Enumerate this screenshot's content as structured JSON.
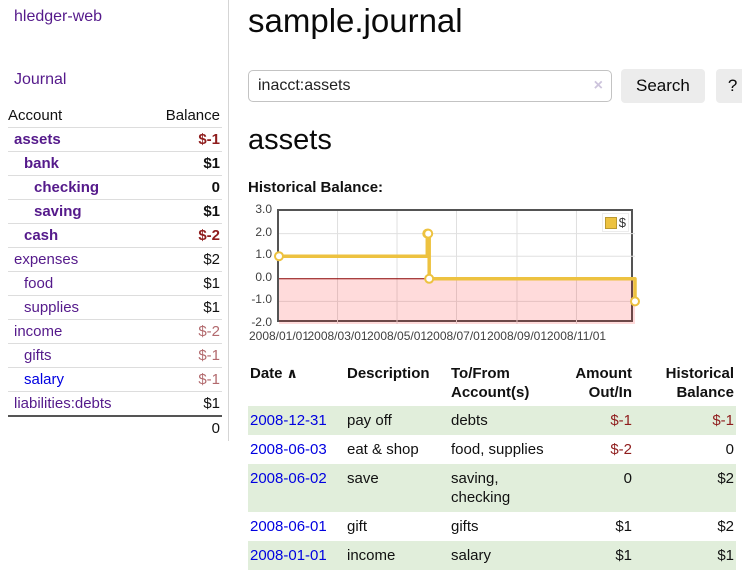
{
  "sidebar": {
    "brand": "hledger-web",
    "nav": {
      "journal": "Journal"
    },
    "accounts": {
      "headers": {
        "account": "Account",
        "balance": "Balance"
      },
      "rows": [
        {
          "name": "assets",
          "balance": "$-1"
        },
        {
          "name": "bank",
          "balance": "$1"
        },
        {
          "name": "checking",
          "balance": "0"
        },
        {
          "name": "saving",
          "balance": "$1"
        },
        {
          "name": "cash",
          "balance": "$-2"
        },
        {
          "name": "expenses",
          "balance": "$2"
        },
        {
          "name": "food",
          "balance": "$1"
        },
        {
          "name": "supplies",
          "balance": "$1"
        },
        {
          "name": "income",
          "balance": "$-2"
        },
        {
          "name": "gifts",
          "balance": "$-1"
        },
        {
          "name": "salary",
          "balance": "$-1"
        },
        {
          "name": "liabilities:debts",
          "balance": "$1"
        }
      ],
      "total": "0"
    }
  },
  "main": {
    "title": "sample.journal",
    "search": {
      "value": "inacct:assets",
      "clear_icon": "×",
      "search_button": "Search",
      "help_button": "?"
    },
    "account_heading": "assets",
    "chart_label": "Historical Balance:",
    "register": {
      "headers": {
        "date": "Date",
        "sort_icon": "∧",
        "description": "Description",
        "accounts": "To/From Account(s)",
        "amount": "Amount Out/In",
        "balance": "Historical Balance"
      },
      "rows": [
        {
          "date": "2008-12-31",
          "description": "pay off",
          "accounts": "debts",
          "amount": "$-1",
          "balance": "$-1"
        },
        {
          "date": "2008-06-03",
          "description": "eat & shop",
          "accounts": "food, supplies",
          "amount": "$-2",
          "balance": "0"
        },
        {
          "date": "2008-06-02",
          "description": "save",
          "accounts": "saving, checking",
          "amount": "0",
          "balance": "$2"
        },
        {
          "date": "2008-06-01",
          "description": "gift",
          "accounts": "gifts",
          "amount": "$1",
          "balance": "$2"
        },
        {
          "date": "2008-01-01",
          "description": "income",
          "accounts": "salary",
          "amount": "$1",
          "balance": "$1"
        }
      ]
    }
  },
  "chart_data": {
    "type": "line",
    "title": "Historical Balance:",
    "x_range": [
      "2008-01-01",
      "2008-12-31"
    ],
    "ylim": [
      -2,
      3
    ],
    "x_ticks": [
      "2008/01/01",
      "2008/03/01",
      "2008/05/01",
      "2008/07/01",
      "2008/09/01",
      "2008/11/01"
    ],
    "y_ticks": [
      3,
      2,
      1,
      0,
      -1,
      -2
    ],
    "grid": true,
    "legend": {
      "label": "$",
      "position": "top-right"
    },
    "series": [
      {
        "name": "$",
        "color": "#edc240",
        "step": true,
        "points": [
          {
            "date": "2008-01-01",
            "value": 1
          },
          {
            "date": "2008-06-01",
            "value": 2
          },
          {
            "date": "2008-06-02",
            "value": 2
          },
          {
            "date": "2008-06-03",
            "value": 0
          },
          {
            "date": "2008-12-31",
            "value": -1
          }
        ]
      }
    ],
    "grid_color": "#e0e0e0",
    "negative_region_color": "rgba(255,0,0,0.14)",
    "zero_line_color": "#8b0000",
    "border_color": "#545454"
  },
  "colors": {
    "link_purple": "#551a8b",
    "link_blue": "#0000e0",
    "negative_strong": "#8f1d1d",
    "negative_soft": "#b2696d",
    "row_stripe_green": "#e1eedb",
    "accent_gold": "#edc240"
  }
}
